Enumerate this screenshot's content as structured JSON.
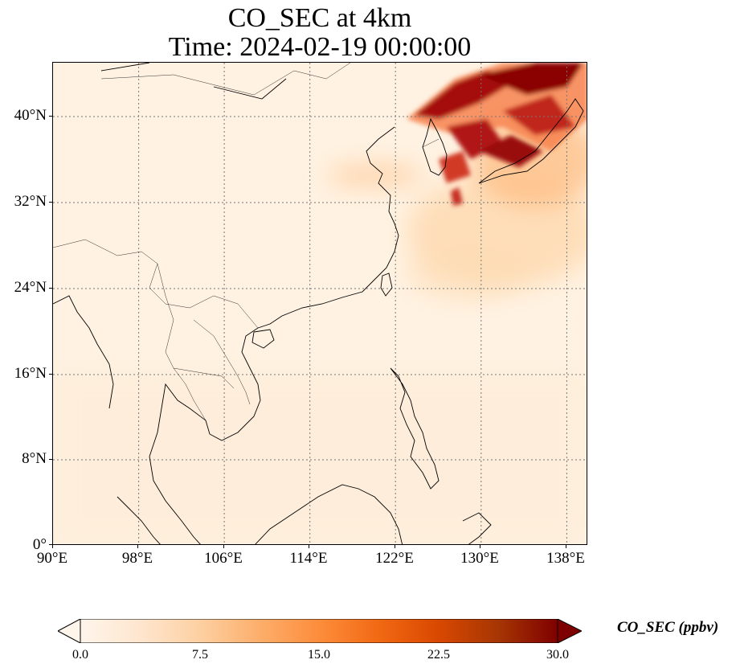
{
  "title": {
    "line1": "CO_SEC at 4km",
    "line2": "Time: 2024-02-19 00:00:00"
  },
  "map": {
    "lon_range": [
      90,
      140
    ],
    "lat_range": [
      0,
      45
    ],
    "x_ticks": [
      "90°E",
      "98°E",
      "106°E",
      "114°E",
      "122°E",
      "130°E",
      "138°E"
    ],
    "y_ticks": [
      "40°N",
      "32°N",
      "24°N",
      "16°N",
      "8°N",
      "0°"
    ],
    "gridlines": "dotted",
    "plume_description_colors": {
      "low": "#fff5eb",
      "mid": "#fdae6b",
      "high": "#7f0000"
    }
  },
  "colorbar": {
    "label": "CO_SEC (ppbv)",
    "ticks": [
      "0.0",
      "7.5",
      "15.0",
      "22.5",
      "30.0"
    ],
    "min": 0,
    "max": 30,
    "extend": "both",
    "colormap": [
      "#fff5eb",
      "#fee6ce",
      "#fdd0a2",
      "#fdae6b",
      "#fd8d3c",
      "#f16913",
      "#d94801",
      "#a63603",
      "#7f0000"
    ]
  }
}
